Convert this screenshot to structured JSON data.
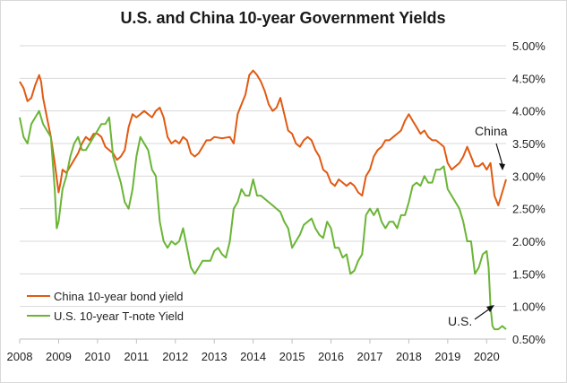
{
  "chart_data": {
    "type": "line",
    "title": "U.S. and China 10-year Government Yields",
    "xlabel": "",
    "ylabel": "",
    "x_ticks": [
      "2008",
      "2009",
      "2010",
      "2011",
      "2012",
      "2013",
      "2014",
      "2015",
      "2016",
      "2017",
      "2018",
      "2019",
      "2020"
    ],
    "y_ticks": [
      "0.50%",
      "1.00%",
      "1.50%",
      "2.00%",
      "2.50%",
      "3.00%",
      "3.50%",
      "4.00%",
      "4.50%",
      "5.00%"
    ],
    "xlim": [
      2008.0,
      2020.5
    ],
    "ylim": [
      0.5,
      5.0
    ],
    "grid": "horizontal",
    "legend_position": "bottom-left",
    "series": [
      {
        "name": "China 10-year bond yield",
        "color": "#e15a12",
        "x": [
          2008.0,
          2008.1,
          2008.2,
          2008.3,
          2008.4,
          2008.5,
          2008.55,
          2008.6,
          2008.7,
          2008.8,
          2008.9,
          2009.0,
          2009.05,
          2009.1,
          2009.2,
          2009.3,
          2009.4,
          2009.5,
          2009.6,
          2009.7,
          2009.8,
          2009.9,
          2010.0,
          2010.1,
          2010.2,
          2010.3,
          2010.4,
          2010.5,
          2010.6,
          2010.7,
          2010.8,
          2010.9,
          2011.0,
          2011.1,
          2011.2,
          2011.3,
          2011.4,
          2011.5,
          2011.6,
          2011.7,
          2011.8,
          2011.9,
          2012.0,
          2012.1,
          2012.2,
          2012.3,
          2012.4,
          2012.5,
          2012.6,
          2012.7,
          2012.8,
          2012.9,
          2013.0,
          2013.2,
          2013.4,
          2013.5,
          2013.6,
          2013.7,
          2013.8,
          2013.9,
          2014.0,
          2014.1,
          2014.2,
          2014.3,
          2014.4,
          2014.5,
          2014.6,
          2014.7,
          2014.8,
          2014.9,
          2015.0,
          2015.1,
          2015.2,
          2015.3,
          2015.4,
          2015.5,
          2015.6,
          2015.7,
          2015.8,
          2015.9,
          2016.0,
          2016.1,
          2016.2,
          2016.3,
          2016.4,
          2016.5,
          2016.6,
          2016.7,
          2016.8,
          2016.9,
          2017.0,
          2017.1,
          2017.2,
          2017.3,
          2017.4,
          2017.5,
          2017.6,
          2017.7,
          2017.8,
          2017.9,
          2018.0,
          2018.1,
          2018.2,
          2018.3,
          2018.4,
          2018.5,
          2018.6,
          2018.7,
          2018.8,
          2018.9,
          2019.0,
          2019.1,
          2019.2,
          2019.3,
          2019.4,
          2019.5,
          2019.6,
          2019.7,
          2019.8,
          2019.9,
          2020.0,
          2020.1,
          2020.2,
          2020.3,
          2020.4,
          2020.5
        ],
        "values": [
          4.45,
          4.35,
          4.15,
          4.2,
          4.4,
          4.55,
          4.45,
          4.2,
          3.9,
          3.6,
          3.2,
          2.75,
          2.9,
          3.1,
          3.05,
          3.15,
          3.25,
          3.35,
          3.5,
          3.6,
          3.55,
          3.65,
          3.65,
          3.6,
          3.45,
          3.4,
          3.35,
          3.25,
          3.3,
          3.4,
          3.75,
          3.95,
          3.9,
          3.95,
          4.0,
          3.95,
          3.9,
          4.0,
          4.05,
          3.9,
          3.6,
          3.5,
          3.55,
          3.5,
          3.6,
          3.55,
          3.35,
          3.3,
          3.35,
          3.45,
          3.55,
          3.55,
          3.6,
          3.58,
          3.6,
          3.5,
          3.95,
          4.1,
          4.25,
          4.55,
          4.62,
          4.55,
          4.45,
          4.3,
          4.1,
          4.0,
          4.05,
          4.2,
          3.95,
          3.7,
          3.65,
          3.5,
          3.45,
          3.55,
          3.6,
          3.55,
          3.4,
          3.3,
          3.1,
          3.05,
          2.9,
          2.85,
          2.95,
          2.9,
          2.85,
          2.9,
          2.85,
          2.75,
          2.7,
          3.0,
          3.1,
          3.3,
          3.4,
          3.45,
          3.55,
          3.55,
          3.6,
          3.65,
          3.7,
          3.85,
          3.95,
          3.85,
          3.75,
          3.65,
          3.7,
          3.6,
          3.55,
          3.55,
          3.5,
          3.45,
          3.2,
          3.1,
          3.15,
          3.2,
          3.3,
          3.45,
          3.3,
          3.15,
          3.15,
          3.2,
          3.1,
          3.2,
          2.7,
          2.55,
          2.75,
          2.95
        ]
      },
      {
        "name": "U.S. 10-year T-note Yield",
        "color": "#6ab536",
        "x": [
          2008.0,
          2008.1,
          2008.2,
          2008.3,
          2008.4,
          2008.5,
          2008.6,
          2008.7,
          2008.8,
          2008.9,
          2008.95,
          2009.0,
          2009.1,
          2009.2,
          2009.3,
          2009.4,
          2009.5,
          2009.6,
          2009.7,
          2009.8,
          2009.9,
          2010.0,
          2010.1,
          2010.2,
          2010.3,
          2010.4,
          2010.5,
          2010.6,
          2010.7,
          2010.8,
          2010.9,
          2011.0,
          2011.1,
          2011.2,
          2011.3,
          2011.4,
          2011.5,
          2011.6,
          2011.7,
          2011.8,
          2011.9,
          2012.0,
          2012.1,
          2012.2,
          2012.3,
          2012.4,
          2012.5,
          2012.6,
          2012.7,
          2012.8,
          2012.9,
          2013.0,
          2013.1,
          2013.2,
          2013.3,
          2013.4,
          2013.5,
          2013.6,
          2013.7,
          2013.8,
          2013.9,
          2014.0,
          2014.1,
          2014.2,
          2014.3,
          2014.4,
          2014.5,
          2014.6,
          2014.7,
          2014.8,
          2014.9,
          2015.0,
          2015.1,
          2015.2,
          2015.3,
          2015.4,
          2015.5,
          2015.6,
          2015.7,
          2015.8,
          2015.9,
          2016.0,
          2016.1,
          2016.2,
          2016.3,
          2016.4,
          2016.5,
          2016.6,
          2016.7,
          2016.8,
          2016.9,
          2017.0,
          2017.1,
          2017.2,
          2017.3,
          2017.4,
          2017.5,
          2017.6,
          2017.7,
          2017.8,
          2017.9,
          2018.0,
          2018.1,
          2018.2,
          2018.3,
          2018.4,
          2018.5,
          2018.6,
          2018.7,
          2018.8,
          2018.9,
          2019.0,
          2019.1,
          2019.2,
          2019.3,
          2019.4,
          2019.5,
          2019.6,
          2019.7,
          2019.8,
          2019.9,
          2020.0,
          2020.05,
          2020.1,
          2020.15,
          2020.2,
          2020.3,
          2020.4,
          2020.5
        ],
        "values": [
          3.9,
          3.6,
          3.5,
          3.8,
          3.9,
          4.0,
          3.8,
          3.7,
          3.6,
          2.8,
          2.2,
          2.3,
          2.8,
          3.0,
          3.3,
          3.5,
          3.6,
          3.4,
          3.4,
          3.5,
          3.6,
          3.7,
          3.8,
          3.8,
          3.9,
          3.3,
          3.1,
          2.9,
          2.6,
          2.5,
          2.8,
          3.3,
          3.6,
          3.5,
          3.4,
          3.1,
          3.0,
          2.3,
          2.0,
          1.9,
          2.0,
          1.95,
          2.0,
          2.2,
          1.9,
          1.6,
          1.5,
          1.6,
          1.7,
          1.7,
          1.7,
          1.85,
          1.9,
          1.8,
          1.75,
          2.0,
          2.5,
          2.6,
          2.8,
          2.7,
          2.7,
          2.95,
          2.7,
          2.7,
          2.65,
          2.6,
          2.55,
          2.5,
          2.45,
          2.3,
          2.2,
          1.9,
          2.0,
          2.1,
          2.25,
          2.3,
          2.35,
          2.2,
          2.1,
          2.05,
          2.3,
          2.2,
          1.9,
          1.9,
          1.75,
          1.8,
          1.5,
          1.55,
          1.7,
          1.8,
          2.4,
          2.5,
          2.4,
          2.5,
          2.3,
          2.2,
          2.3,
          2.3,
          2.2,
          2.4,
          2.4,
          2.6,
          2.85,
          2.9,
          2.85,
          3.0,
          2.9,
          2.9,
          3.1,
          3.1,
          3.15,
          2.8,
          2.7,
          2.6,
          2.5,
          2.3,
          2.0,
          2.0,
          1.5,
          1.6,
          1.8,
          1.85,
          1.6,
          1.0,
          0.7,
          0.65,
          0.65,
          0.7,
          0.65
        ]
      }
    ],
    "annotations": [
      {
        "text": "China",
        "x": 2020.1,
        "y": 3.5
      },
      {
        "text": "U.S.",
        "x": 2019.85,
        "y": 0.92
      }
    ]
  }
}
